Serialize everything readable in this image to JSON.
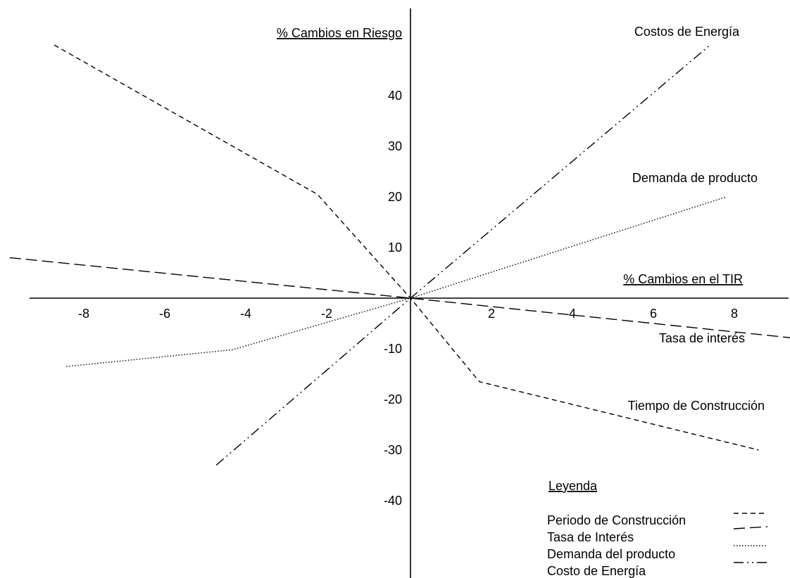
{
  "chart_data": {
    "type": "line",
    "xlabel": "% Cambios en el TIR",
    "ylabel": "% Cambios en Riesgo",
    "xlim": [
      -10,
      9.5
    ],
    "ylim": [
      -45,
      55
    ],
    "x_ticks": [
      -8,
      -6,
      -4,
      -2,
      2,
      4,
      6,
      8
    ],
    "y_ticks": [
      40,
      30,
      20,
      10,
      -10,
      -20,
      -30,
      -40
    ],
    "series": [
      {
        "name": "Periodo de Construcción",
        "label": "Tiempo de Construcción",
        "dash": "7,5",
        "points": [
          [
            -8.8,
            50
          ],
          [
            -2.3,
            20.5
          ],
          [
            0,
            0
          ],
          [
            1.7,
            -16.5
          ],
          [
            8.6,
            -30
          ]
        ]
      },
      {
        "name": "Tasa de Interés",
        "label": "Tasa de interés",
        "dash": "16,7",
        "points": [
          [
            -9.9,
            8
          ],
          [
            0,
            0
          ],
          [
            9.6,
            -8
          ]
        ]
      },
      {
        "name": "Demanda del producto",
        "label": "Demanda de producto",
        "dash": "1.5,2.5",
        "points": [
          [
            -8.5,
            -13.5
          ],
          [
            -4.4,
            -10.2
          ],
          [
            0,
            0
          ],
          [
            7.8,
            20
          ]
        ]
      },
      {
        "name": "Costo de Energía",
        "label": "Costos de Energía",
        "dash": "14,5,2,5,2,5",
        "points": [
          [
            -4.8,
            -33
          ],
          [
            0,
            0
          ],
          [
            7.4,
            50
          ]
        ]
      }
    ],
    "legend": {
      "title": "Leyenda",
      "position": "bottom-right"
    }
  }
}
